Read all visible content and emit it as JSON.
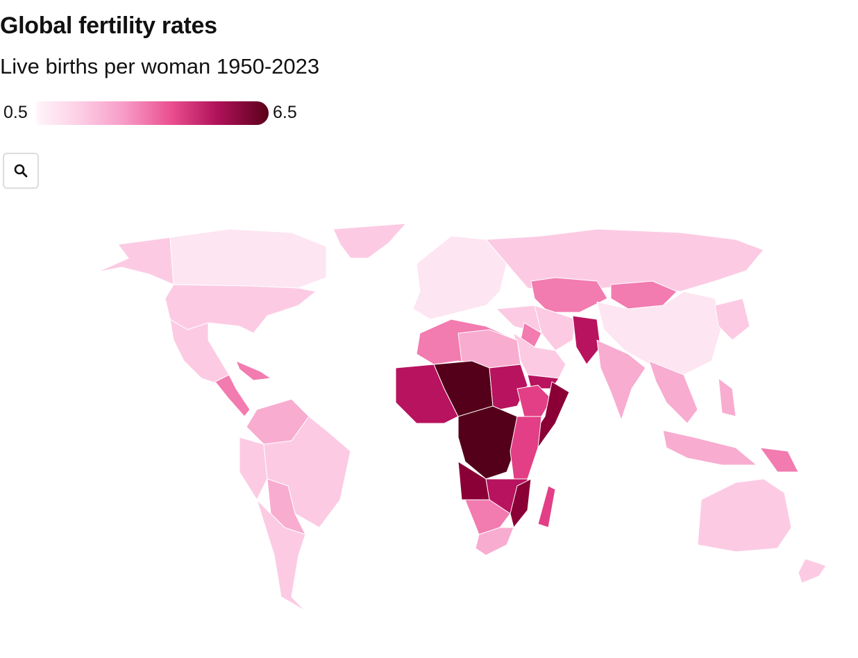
{
  "header": {
    "title": "Global fertility rates",
    "subtitle": "Live births per woman 1950-2023"
  },
  "legend": {
    "min_label": "0.5",
    "max_label": "6.5",
    "color_stops": [
      "#fff5fa",
      "#fdd0e6",
      "#f79bc6",
      "#ea4f8f",
      "#b0125a",
      "#5a0019"
    ]
  },
  "toolbar": {
    "search_icon": "search-icon"
  },
  "map": {
    "type": "choropleth",
    "colors": {
      "very_low": "#fde5f1",
      "low": "#fccbe3",
      "low_mid": "#f8acd0",
      "mid": "#f27bb0",
      "mid_high": "#e23f86",
      "high": "#b8135e",
      "very_high": "#8a0036",
      "max": "#55001a"
    }
  }
}
